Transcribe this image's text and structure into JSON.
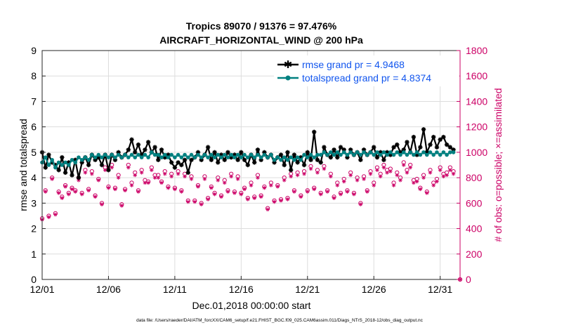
{
  "chart_data": {
    "type": "line",
    "title": "Tropics 89070 / 91376 = 97.476%",
    "subtitle": "AIRCRAFT_HORIZONTAL_WIND @ 200 hPa",
    "xlabel": "Dec.01,2018 00:00:00 start",
    "ylabel_left": "rmse and totalspread",
    "ylabel_right": "# of obs: o=possible; ×=assimilated",
    "footnote": "data file: /Users/raeder/DAI/ATM_forcXX/CAM6_setup/f.e21.FHIST_BGC.f09_025.CAM6assim.011/Diags_NTrS_2018-12/obs_diag_output.nc",
    "xlim": [
      1,
      32.5
    ],
    "ylim_left": [
      0,
      9
    ],
    "ylim_right": [
      0,
      1800
    ],
    "x_ticks": [
      1,
      6,
      11,
      16,
      21,
      26,
      31
    ],
    "x_tick_labels": [
      "12/01",
      "12/06",
      "12/11",
      "12/16",
      "12/21",
      "12/26",
      "12/31"
    ],
    "y_ticks_left": [
      0,
      1,
      2,
      3,
      4,
      5,
      6,
      7,
      8,
      9
    ],
    "y_ticks_right": [
      0,
      200,
      400,
      600,
      800,
      1000,
      1200,
      1400,
      1600,
      1800
    ],
    "grid": true,
    "legend_position": "top-right",
    "colors": {
      "rmse": "#000000",
      "totalspread": "#008080",
      "obs": "#cc0066",
      "legend_text": "#1155ee"
    },
    "series": [
      {
        "name": "rmse grand pr = 4.9468",
        "axis": "left",
        "x": [
          1.0,
          1.25,
          1.5,
          1.75,
          2.0,
          2.25,
          2.5,
          2.75,
          3.0,
          3.25,
          3.5,
          3.75,
          4.0,
          4.25,
          4.5,
          4.75,
          5.0,
          5.25,
          5.5,
          5.75,
          6.0,
          6.25,
          6.5,
          6.75,
          7.0,
          7.25,
          7.5,
          7.75,
          8.0,
          8.25,
          8.5,
          8.75,
          9.0,
          9.25,
          9.5,
          9.75,
          10.0,
          10.25,
          10.5,
          10.75,
          11.0,
          11.25,
          11.5,
          11.75,
          12.0,
          12.25,
          12.5,
          12.75,
          13.0,
          13.25,
          13.5,
          13.75,
          14.0,
          14.25,
          14.5,
          14.75,
          15.0,
          15.25,
          15.5,
          15.75,
          16.0,
          16.25,
          16.5,
          16.75,
          17.0,
          17.25,
          17.5,
          17.75,
          18.0,
          18.25,
          18.5,
          18.75,
          19.0,
          19.25,
          19.5,
          19.75,
          20.0,
          20.25,
          20.5,
          20.75,
          21.0,
          21.25,
          21.5,
          21.75,
          22.0,
          22.25,
          22.5,
          22.75,
          23.0,
          23.25,
          23.5,
          23.75,
          24.0,
          24.25,
          24.5,
          24.75,
          25.0,
          25.25,
          25.5,
          25.75,
          26.0,
          26.25,
          26.5,
          26.75,
          27.0,
          27.25,
          27.5,
          27.75,
          28.0,
          28.25,
          28.5,
          28.75,
          29.0,
          29.25,
          29.5,
          29.75,
          30.0,
          30.25,
          30.5,
          30.75,
          31.0,
          31.25,
          31.5,
          31.75,
          32.0
        ],
        "values": [
          5.0,
          4.4,
          4.9,
          4.6,
          4.5,
          4.3,
          4.8,
          4.2,
          4.6,
          4.1,
          4.7,
          4.0,
          4.6,
          4.8,
          4.5,
          4.9,
          4.7,
          4.8,
          4.5,
          4.9,
          4.3,
          4.9,
          4.7,
          5.0,
          4.8,
          4.9,
          5.1,
          5.5,
          5.0,
          5.3,
          4.9,
          5.1,
          5.4,
          5.0,
          5.2,
          4.7,
          5.1,
          4.8,
          4.9,
          4.6,
          4.4,
          4.6,
          4.5,
          4.7,
          4.2,
          4.7,
          4.8,
          5.0,
          4.7,
          4.9,
          5.2,
          4.7,
          5.0,
          4.6,
          4.9,
          4.7,
          5.0,
          4.8,
          4.9,
          4.7,
          5.0,
          4.7,
          4.5,
          4.9,
          4.6,
          5.1,
          4.7,
          5.0,
          4.8,
          4.9,
          4.6,
          4.8,
          4.9,
          4.5,
          5.0,
          4.3,
          4.9,
          4.6,
          4.8,
          4.5,
          5.0,
          4.7,
          5.8,
          4.7,
          4.6,
          5.2,
          4.9,
          4.8,
          5.1,
          4.8,
          5.2,
          5.1,
          4.8,
          5.1,
          4.9,
          5.0,
          4.7,
          5.1,
          4.9,
          5.0,
          5.2,
          4.8,
          5.0,
          4.7,
          5.0,
          4.9,
          5.2,
          5.3,
          5.0,
          5.1,
          5.4,
          5.0,
          5.6,
          4.9,
          5.2,
          5.9,
          5.0,
          5.3,
          5.6,
          5.2,
          5.5,
          5.6,
          5.3,
          5.2,
          5.1
        ]
      },
      {
        "name": "totalspread grand pr = 4.8374",
        "axis": "left",
        "x": [
          1.0,
          1.25,
          1.5,
          1.75,
          2.0,
          2.25,
          2.5,
          2.75,
          3.0,
          3.25,
          3.5,
          3.75,
          4.0,
          4.25,
          4.5,
          4.75,
          5.0,
          5.25,
          5.5,
          5.75,
          6.0,
          6.25,
          6.5,
          6.75,
          7.0,
          7.25,
          7.5,
          7.75,
          8.0,
          8.25,
          8.5,
          8.75,
          9.0,
          9.25,
          9.5,
          9.75,
          10.0,
          10.25,
          10.5,
          10.75,
          11.0,
          11.25,
          11.5,
          11.75,
          12.0,
          12.25,
          12.5,
          12.75,
          13.0,
          13.25,
          13.5,
          13.75,
          14.0,
          14.25,
          14.5,
          14.75,
          15.0,
          15.25,
          15.5,
          15.75,
          16.0,
          16.25,
          16.5,
          16.75,
          17.0,
          17.25,
          17.5,
          17.75,
          18.0,
          18.25,
          18.5,
          18.75,
          19.0,
          19.25,
          19.5,
          19.75,
          20.0,
          20.25,
          20.5,
          20.75,
          21.0,
          21.25,
          21.5,
          21.75,
          22.0,
          22.25,
          22.5,
          22.75,
          23.0,
          23.25,
          23.5,
          23.75,
          24.0,
          24.25,
          24.5,
          24.75,
          25.0,
          25.25,
          25.5,
          25.75,
          26.0,
          26.25,
          26.5,
          26.75,
          27.0,
          27.25,
          27.5,
          27.75,
          28.0,
          28.25,
          28.5,
          28.75,
          29.0,
          29.25,
          29.5,
          29.75,
          30.0,
          30.25,
          30.5,
          30.75,
          31.0,
          31.25,
          31.5,
          31.75,
          32.0
        ],
        "values": [
          4.6,
          4.8,
          4.5,
          4.7,
          4.4,
          4.6,
          4.5,
          4.6,
          4.5,
          4.7,
          4.6,
          4.8,
          4.7,
          4.8,
          4.7,
          4.9,
          4.8,
          4.9,
          4.8,
          4.9,
          4.8,
          4.9,
          4.8,
          4.9,
          4.8,
          4.9,
          4.8,
          4.9,
          4.8,
          4.9,
          4.8,
          4.9,
          4.8,
          5.0,
          4.9,
          4.9,
          4.8,
          4.9,
          4.8,
          4.9,
          4.8,
          4.9,
          4.8,
          4.9,
          4.8,
          4.9,
          4.8,
          4.9,
          4.8,
          4.9,
          4.8,
          4.9,
          4.8,
          4.9,
          4.8,
          4.9,
          4.8,
          4.9,
          4.8,
          4.9,
          4.8,
          4.9,
          4.8,
          4.9,
          4.8,
          4.9,
          4.8,
          4.9,
          4.8,
          4.9,
          4.7,
          4.8,
          4.7,
          4.8,
          4.7,
          4.8,
          4.7,
          4.8,
          4.7,
          4.9,
          4.8,
          4.9,
          4.8,
          4.9,
          4.9,
          5.0,
          4.9,
          5.0,
          4.9,
          5.0,
          4.9,
          5.0,
          4.9,
          5.0,
          4.9,
          5.0,
          4.9,
          5.0,
          4.9,
          5.0,
          4.9,
          5.0,
          4.9,
          5.0,
          4.9,
          5.0,
          4.9,
          5.0,
          4.9,
          5.0,
          4.9,
          5.0,
          4.9,
          5.0,
          4.9,
          5.0,
          4.9,
          5.0,
          4.9,
          5.0,
          4.9,
          5.0,
          4.9,
          5.0,
          5.0
        ]
      },
      {
        "name": "obs possible",
        "axis": "right",
        "marker": "circle",
        "x": [
          1.0,
          1.25,
          1.5,
          1.75,
          2.0,
          2.25,
          2.5,
          2.75,
          3.0,
          3.25,
          3.5,
          3.75,
          4.0,
          4.25,
          4.5,
          4.75,
          5.0,
          5.25,
          5.5,
          5.75,
          6.0,
          6.25,
          6.5,
          6.75,
          7.0,
          7.25,
          7.5,
          7.75,
          8.0,
          8.25,
          8.5,
          8.75,
          9.0,
          9.25,
          9.5,
          9.75,
          10.0,
          10.25,
          10.5,
          10.75,
          11.0,
          11.25,
          11.5,
          11.75,
          12.0,
          12.25,
          12.5,
          12.75,
          13.0,
          13.25,
          13.5,
          13.75,
          14.0,
          14.25,
          14.5,
          14.75,
          15.0,
          15.25,
          15.5,
          15.75,
          16.0,
          16.25,
          16.5,
          16.75,
          17.0,
          17.25,
          17.5,
          17.75,
          18.0,
          18.25,
          18.5,
          18.75,
          19.0,
          19.25,
          19.5,
          19.75,
          20.0,
          20.25,
          20.5,
          20.75,
          21.0,
          21.25,
          21.5,
          21.75,
          22.0,
          22.25,
          22.5,
          22.75,
          23.0,
          23.25,
          23.5,
          23.75,
          24.0,
          24.25,
          24.5,
          24.75,
          25.0,
          25.25,
          25.5,
          25.75,
          26.0,
          26.25,
          26.5,
          26.75,
          27.0,
          27.25,
          27.5,
          27.75,
          28.0,
          28.25,
          28.5,
          28.75,
          29.0,
          29.25,
          29.5,
          29.75,
          30.0,
          30.25,
          30.5,
          30.75,
          31.0,
          31.25,
          31.5,
          31.75,
          32.0,
          32.5
        ],
        "values": [
          480,
          700,
          500,
          800,
          520,
          690,
          650,
          740,
          680,
          720,
          700,
          800,
          680,
          860,
          710,
          850,
          660,
          790,
          600,
          880,
          730,
          900,
          720,
          820,
          590,
          710,
          900,
          760,
          840,
          700,
          860,
          780,
          770,
          880,
          820,
          820,
          770,
          850,
          730,
          830,
          720,
          850,
          700,
          830,
          620,
          810,
          620,
          740,
          600,
          810,
          640,
          730,
          680,
          800,
          660,
          780,
          700,
          830,
          690,
          810,
          680,
          720,
          640,
          760,
          650,
          820,
          660,
          730,
          560,
          760,
          620,
          740,
          630,
          800,
          640,
          830,
          700,
          840,
          660,
          850,
          700,
          890,
          720,
          860,
          680,
          890,
          700,
          830,
          650,
          760,
          680,
          790,
          700,
          840,
          680,
          800,
          600,
          810,
          700,
          850,
          760,
          880,
          830,
          900,
          860,
          870,
          760,
          840,
          800,
          920,
          860,
          900,
          780,
          790,
          720,
          820,
          690,
          860,
          760,
          790,
          880,
          830,
          840,
          880,
          850,
          0
        ]
      },
      {
        "name": "obs assimilated",
        "axis": "right",
        "marker": "asterisk",
        "x": [
          1.0,
          1.25,
          1.5,
          1.75,
          2.0,
          2.25,
          2.5,
          2.75,
          3.0,
          3.25,
          3.5,
          3.75,
          4.0,
          4.25,
          4.5,
          4.75,
          5.0,
          5.25,
          5.5,
          5.75,
          6.0,
          6.25,
          6.5,
          6.75,
          7.0,
          7.25,
          7.5,
          7.75,
          8.0,
          8.25,
          8.5,
          8.75,
          9.0,
          9.25,
          9.5,
          9.75,
          10.0,
          10.25,
          10.5,
          10.75,
          11.0,
          11.25,
          11.5,
          11.75,
          12.0,
          12.25,
          12.5,
          12.75,
          13.0,
          13.25,
          13.5,
          13.75,
          14.0,
          14.25,
          14.5,
          14.75,
          15.0,
          15.25,
          15.5,
          15.75,
          16.0,
          16.25,
          16.5,
          16.75,
          17.0,
          17.25,
          17.5,
          17.75,
          18.0,
          18.25,
          18.5,
          18.75,
          19.0,
          19.25,
          19.5,
          19.75,
          20.0,
          20.25,
          20.5,
          20.75,
          21.0,
          21.25,
          21.5,
          21.75,
          22.0,
          22.25,
          22.5,
          22.75,
          23.0,
          23.25,
          23.5,
          23.75,
          24.0,
          24.25,
          24.5,
          24.75,
          25.0,
          25.25,
          25.5,
          25.75,
          26.0,
          26.25,
          26.5,
          26.75,
          27.0,
          27.25,
          27.5,
          27.75,
          28.0,
          28.25,
          28.5,
          28.75,
          29.0,
          29.25,
          29.5,
          29.75,
          30.0,
          30.25,
          30.5,
          30.75,
          31.0,
          31.25,
          31.5,
          31.75,
          32.0,
          32.5
        ],
        "values": [
          470,
          690,
          490,
          790,
          510,
          680,
          640,
          730,
          670,
          710,
          690,
          780,
          670,
          840,
          700,
          830,
          650,
          780,
          590,
          860,
          720,
          880,
          710,
          800,
          580,
          700,
          880,
          740,
          820,
          690,
          840,
          760,
          760,
          860,
          800,
          800,
          760,
          830,
          720,
          810,
          710,
          830,
          690,
          810,
          610,
          790,
          610,
          730,
          590,
          790,
          630,
          720,
          670,
          780,
          650,
          760,
          690,
          810,
          680,
          790,
          670,
          710,
          630,
          740,
          640,
          800,
          650,
          720,
          550,
          740,
          610,
          730,
          620,
          780,
          630,
          810,
          690,
          820,
          650,
          830,
          690,
          870,
          710,
          840,
          670,
          870,
          690,
          810,
          640,
          740,
          670,
          770,
          690,
          820,
          670,
          780,
          590,
          790,
          690,
          830,
          740,
          860,
          810,
          880,
          840,
          850,
          740,
          820,
          780,
          900,
          840,
          880,
          760,
          770,
          710,
          800,
          680,
          840,
          740,
          770,
          860,
          810,
          820,
          860,
          830,
          0
        ]
      }
    ]
  }
}
